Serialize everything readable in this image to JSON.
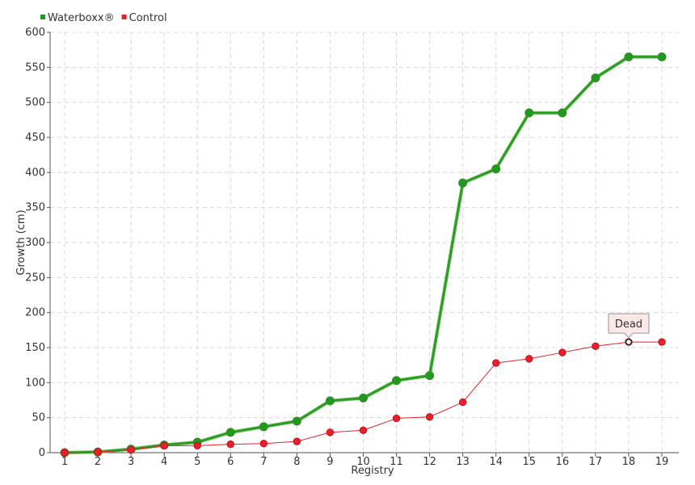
{
  "chart_data": {
    "type": "line",
    "title": "",
    "xlabel": "Registry",
    "ylabel": "Growth (cm)",
    "categories": [
      "1",
      "2",
      "3",
      "4",
      "5",
      "6",
      "7",
      "8",
      "9",
      "10",
      "11",
      "12",
      "13",
      "14",
      "15",
      "16",
      "17",
      "18",
      "19"
    ],
    "ylim": [
      0,
      600
    ],
    "yticks": [
      0,
      50,
      100,
      150,
      200,
      250,
      300,
      350,
      400,
      450,
      500,
      550,
      600
    ],
    "grid": true,
    "legend_position": "top-left",
    "series": [
      {
        "name": "Waterboxx®",
        "color": "#1f9a1f",
        "values": [
          0,
          1,
          5,
          11,
          15,
          29,
          37,
          45,
          74,
          78,
          103,
          110,
          385,
          405,
          485,
          485,
          535,
          565,
          565
        ]
      },
      {
        "name": "Control",
        "color": "#e8202a",
        "values": [
          0,
          1,
          4,
          10,
          10,
          12,
          13,
          16,
          29,
          32,
          49,
          51,
          72,
          128,
          134,
          143,
          152,
          158,
          158
        ]
      }
    ],
    "annotations": [
      {
        "series": "Control",
        "category": "18",
        "text": "Dead"
      }
    ]
  }
}
